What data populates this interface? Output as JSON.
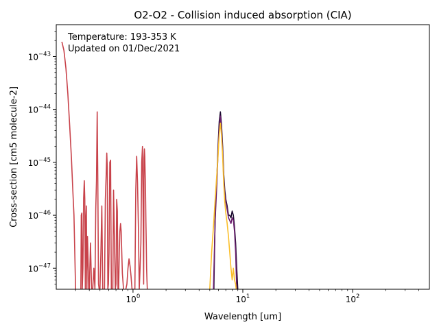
{
  "chart_data": {
    "type": "line",
    "title": "O2-O2 - Collision induced absorption (CIA)",
    "xlabel": "Wavelength [um]",
    "ylabel": "Cross-section [cm5 molecule-2]",
    "xscale": "log",
    "yscale": "log",
    "xlim": [
      0.2,
      500
    ],
    "ylim": [
      4e-48,
      4e-43
    ],
    "grid": false,
    "legend": "none",
    "annotations": [
      "Temperature: 193-353 K",
      "Updated on 01/Dec/2021"
    ],
    "x_ticks": [
      {
        "value": 1,
        "base": "10",
        "exp": "0"
      },
      {
        "value": 10,
        "base": "10",
        "exp": "1"
      },
      {
        "value": 100,
        "base": "10",
        "exp": "2"
      }
    ],
    "y_ticks": [
      {
        "value": 1e-47,
        "base": "10",
        "exp": "−47"
      },
      {
        "value": 1e-46,
        "base": "10",
        "exp": "−46"
      },
      {
        "value": 1e-45,
        "base": "10",
        "exp": "−45"
      },
      {
        "value": 1e-44,
        "base": "10",
        "exp": "−44"
      },
      {
        "value": 1e-43,
        "base": "10",
        "exp": "−43"
      }
    ],
    "series": [
      {
        "color": "#c8424a",
        "x": [
          0.225,
          0.235,
          0.245,
          0.255,
          0.265,
          0.275,
          0.283,
          0.29,
          0.3
        ],
        "y": [
          1.9e-43,
          1.3e-43,
          6e-44,
          2e-44,
          5e-45,
          1.2e-45,
          3e-46,
          1e-46,
          4e-48
        ]
      },
      {
        "color": "#c8424a",
        "x": [
          0.335,
          0.338,
          0.342,
          0.345,
          0.35,
          0.355,
          0.36,
          0.364,
          0.368,
          0.372,
          0.376,
          0.38,
          0.385,
          0.39,
          0.395,
          0.4,
          0.41,
          0.42,
          0.43,
          0.44,
          0.45,
          0.458,
          0.465,
          0.472,
          0.478,
          0.485,
          0.492,
          0.5,
          0.51,
          0.52,
          0.53,
          0.54,
          0.55,
          0.56,
          0.57,
          0.577,
          0.583,
          0.59,
          0.597,
          0.605,
          0.615,
          0.625,
          0.635,
          0.645,
          0.655,
          0.665,
          0.675,
          0.69,
          0.7,
          0.71,
          0.72,
          0.73,
          0.74,
          0.75,
          0.76,
          0.77,
          0.78,
          0.79,
          0.8,
          0.82
        ],
        "y": [
          4e-48,
          1e-46,
          1.1e-46,
          4e-48,
          1e-47,
          2e-46,
          4.5e-46,
          2e-46,
          4e-48,
          8e-47,
          1.5e-46,
          4e-48,
          4e-47,
          1.5e-47,
          4e-48,
          4e-48,
          3e-47,
          4e-48,
          4e-48,
          1e-47,
          4e-48,
          1.3e-46,
          4.5e-46,
          9e-45,
          5e-46,
          5e-48,
          4e-48,
          4e-48,
          2e-47,
          1.5e-46,
          4e-48,
          4e-48,
          4e-48,
          2e-46,
          6e-46,
          1.5e-45,
          8e-46,
          4e-48,
          5e-48,
          2e-47,
          1e-45,
          1.1e-45,
          4e-48,
          4e-48,
          4e-48,
          3e-46,
          6e-47,
          4e-48,
          5e-48,
          2e-46,
          1.2e-46,
          4e-48,
          4e-48,
          2e-47,
          5e-47,
          7e-47,
          5e-47,
          2e-47,
          8e-48,
          4e-48
        ]
      },
      {
        "color": "#c8424a",
        "x": [
          0.86,
          0.88,
          0.9,
          0.92,
          0.94,
          0.96,
          0.98,
          1.0,
          1.02,
          1.04,
          1.06,
          1.08,
          1.1,
          1.12,
          1.14,
          1.16,
          1.18,
          1.2,
          1.22,
          1.235,
          1.25,
          1.26,
          1.27,
          1.28,
          1.29,
          1.3,
          1.31,
          1.32,
          1.33,
          1.34,
          1.35
        ],
        "y": [
          4e-48,
          5e-48,
          1e-47,
          1.5e-47,
          1.1e-47,
          7e-48,
          4e-48,
          4e-48,
          4e-48,
          4e-48,
          3e-46,
          1.3e-45,
          4e-46,
          6e-47,
          4e-48,
          1e-47,
          3e-47,
          1e-45,
          2e-45,
          1.5e-46,
          5e-48,
          1.2e-45,
          1.8e-45,
          1.3e-45,
          6e-46,
          3e-46,
          8e-47,
          3e-47,
          1e-47,
          6e-48,
          4e-48
        ]
      },
      {
        "color": "#1a0a2e",
        "x": [
          5.45,
          5.6,
          5.8,
          5.95,
          6.1,
          6.25,
          6.4,
          6.55,
          6.7,
          6.85,
          7.0,
          7.2,
          7.4,
          7.6,
          7.8,
          8.0,
          8.2,
          8.4,
          8.6,
          8.8,
          9.0
        ],
        "y": [
          4e-48,
          1e-46,
          5e-46,
          2e-45,
          6e-45,
          9e-45,
          5e-45,
          2e-45,
          6e-46,
          3e-46,
          2e-46,
          1.5e-46,
          1e-46,
          1e-46,
          9e-47,
          1.2e-46,
          1e-46,
          6e-47,
          3e-47,
          1e-47,
          4e-48
        ]
      },
      {
        "color": "#6b1f6e",
        "x": [
          5.4,
          5.6,
          5.8,
          5.95,
          6.1,
          6.25,
          6.4,
          6.55,
          6.7,
          6.85,
          7.0,
          7.2,
          7.4,
          7.6,
          7.8,
          8.0,
          8.2,
          8.4,
          8.6,
          8.8
        ],
        "y": [
          4e-48,
          8e-47,
          4e-46,
          1.6e-45,
          4.5e-45,
          7.5e-45,
          4e-45,
          1.6e-45,
          5e-46,
          2.5e-46,
          1.8e-46,
          1.3e-46,
          9e-47,
          8e-47,
          7e-47,
          9e-47,
          8e-47,
          5e-47,
          2e-47,
          4e-48
        ]
      },
      {
        "color": "#fbbf2a",
        "x": [
          5.0,
          5.2,
          5.4,
          5.6,
          5.8,
          5.95,
          6.1,
          6.25,
          6.4,
          6.55,
          6.7,
          6.85,
          7.0,
          7.2,
          7.4,
          7.6,
          7.8,
          8.0,
          8.2,
          8.4,
          8.6,
          8.7
        ],
        "y": [
          4e-48,
          2e-47,
          6e-47,
          2e-46,
          6e-46,
          1.3e-45,
          3.5e-45,
          5.5e-45,
          3.2e-45,
          1.3e-45,
          4e-46,
          1.8e-46,
          1.1e-46,
          7e-47,
          4e-47,
          2e-47,
          1e-47,
          6e-48,
          1e-47,
          6e-48,
          5e-48,
          4e-48
        ]
      }
    ]
  }
}
